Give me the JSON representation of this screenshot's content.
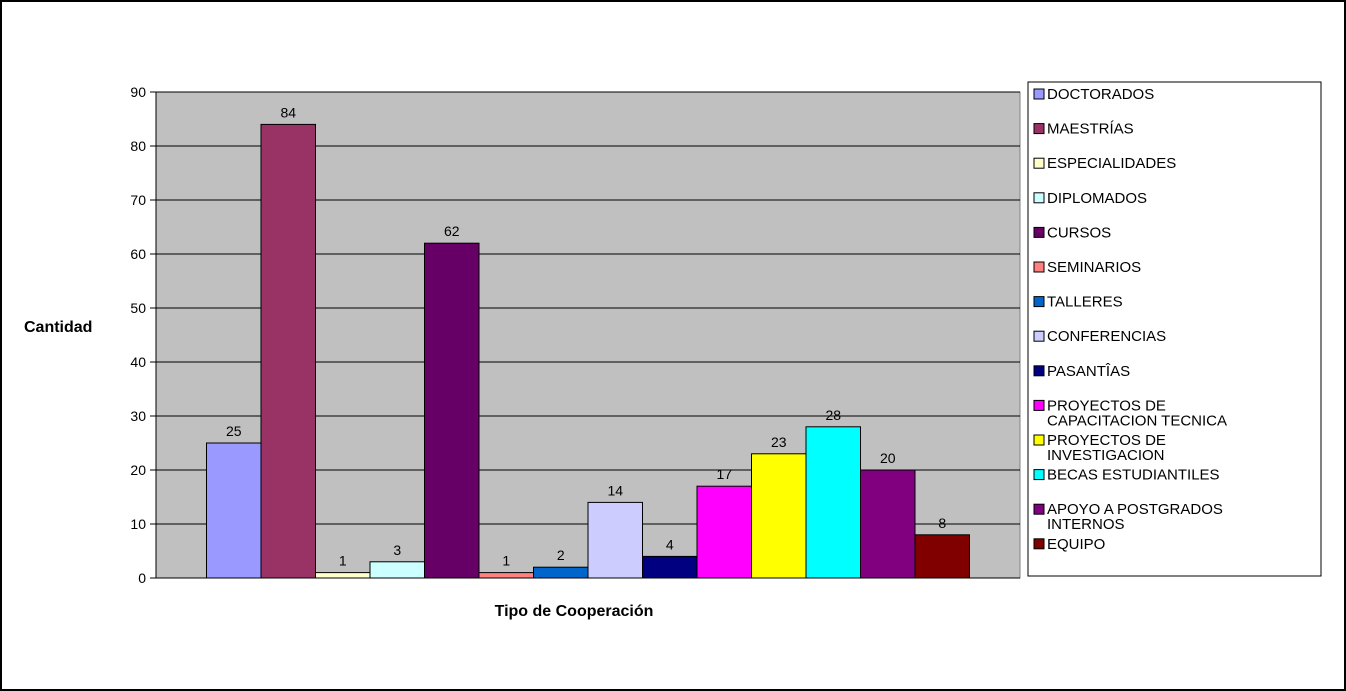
{
  "chart_data": {
    "type": "bar",
    "title": "",
    "xlabel": "Tipo de Cooperación",
    "ylabel": "Cantidad",
    "ylim": [
      0,
      90
    ],
    "yticks": [
      0,
      10,
      20,
      30,
      40,
      50,
      60,
      70,
      80,
      90
    ],
    "grid": true,
    "legend_position": "right",
    "plot_background": "#c0c0c0",
    "series": [
      {
        "name": "DOCTORADOS",
        "legend_lines": [
          "DOCTORADOS"
        ],
        "value": 25,
        "color": "#9999ff"
      },
      {
        "name": "MAESTRÍAS",
        "legend_lines": [
          "MAESTRÍAS"
        ],
        "value": 84,
        "color": "#993366"
      },
      {
        "name": "ESPECIALIDADES",
        "legend_lines": [
          "ESPECIALIDADES"
        ],
        "value": 1,
        "color": "#ffffcc"
      },
      {
        "name": "DIPLOMADOS",
        "legend_lines": [
          "DIPLOMADOS"
        ],
        "value": 3,
        "color": "#ccffff"
      },
      {
        "name": "CURSOS",
        "legend_lines": [
          "CURSOS"
        ],
        "value": 62,
        "color": "#660066"
      },
      {
        "name": "SEMINARIOS",
        "legend_lines": [
          "SEMINARIOS"
        ],
        "value": 1,
        "color": "#ff8080"
      },
      {
        "name": "TALLERES",
        "legend_lines": [
          "TALLERES"
        ],
        "value": 2,
        "color": "#0066cc"
      },
      {
        "name": "CONFERENCIAS",
        "legend_lines": [
          "CONFERENCIAS"
        ],
        "value": 14,
        "color": "#ccccff"
      },
      {
        "name": "PASANTÎAS",
        "legend_lines": [
          "PASANTÎAS"
        ],
        "value": 4,
        "color": "#000080"
      },
      {
        "name": "PROYECTOS DE CAPACITACION TECNICA",
        "legend_lines": [
          "PROYECTOS DE",
          "CAPACITACION TECNICA"
        ],
        "value": 17,
        "color": "#ff00ff"
      },
      {
        "name": "PROYECTOS DE INVESTIGACION",
        "legend_lines": [
          "PROYECTOS DE",
          "INVESTIGACION"
        ],
        "value": 23,
        "color": "#ffff00"
      },
      {
        "name": "BECAS ESTUDIANTILES",
        "legend_lines": [
          "BECAS ESTUDIANTILES"
        ],
        "value": 28,
        "color": "#00ffff"
      },
      {
        "name": "APOYO A POSTGRADOS INTERNOS",
        "legend_lines": [
          "APOYO A POSTGRADOS",
          "INTERNOS"
        ],
        "value": 20,
        "color": "#800080"
      },
      {
        "name": "EQUIPO",
        "legend_lines": [
          "EQUIPO"
        ],
        "value": 8,
        "color": "#800000"
      }
    ]
  }
}
